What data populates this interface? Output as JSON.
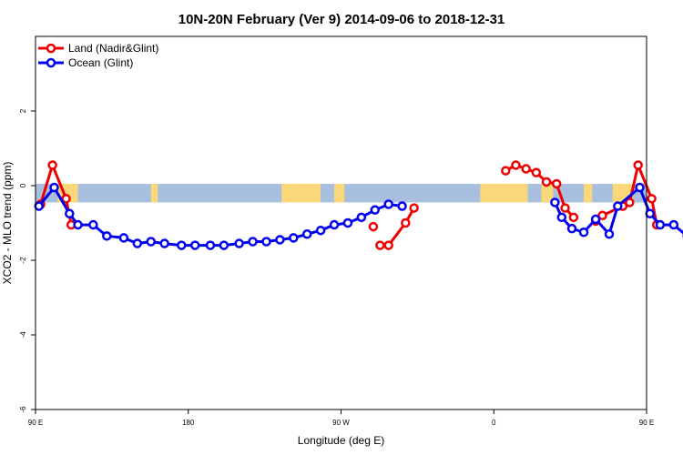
{
  "chart_data": {
    "type": "line",
    "title": "10N-20N February (Ver 9)   2014-09-06 to 2018-12-31",
    "xlabel": "Longitude (deg E)",
    "ylabel": "XCO2 - MLO trend (ppm)",
    "xlim": [
      90,
      450
    ],
    "ylim": [
      -6,
      4
    ],
    "xticks": [
      {
        "value": 90,
        "label": "90 E"
      },
      {
        "value": 180,
        "label": "180"
      },
      {
        "value": 270,
        "label": "90 W"
      },
      {
        "value": 360,
        "label": "0"
      },
      {
        "value": 450,
        "label": "90 E"
      },
      {
        "value": 540,
        "label": "180"
      }
    ],
    "yticks": [
      {
        "value": -6,
        "label": "-6"
      },
      {
        "value": -4,
        "label": "-4"
      },
      {
        "value": -2,
        "label": "-2"
      },
      {
        "value": 0,
        "label": "0"
      },
      {
        "value": 2,
        "label": "2"
      }
    ],
    "legend_position": "top-left",
    "band": {
      "ymin": -0.45,
      "ymax": 0.05,
      "ocean_color": "#a8bfe0",
      "land_color": "#fad87a"
    },
    "land_segments": [
      [
        103,
        115
      ],
      [
        158,
        162
      ],
      [
        235,
        258
      ],
      [
        266,
        272
      ],
      [
        352,
        380
      ],
      [
        388,
        395
      ],
      [
        413,
        418
      ],
      [
        430,
        442
      ],
      [
        486,
        492
      ],
      [
        518,
        528
      ]
    ],
    "series": [
      {
        "name": "Land (Nadir&Glint)",
        "color": "#ee0000",
        "segments": [
          [
            [
              93,
              -0.5
            ],
            [
              100,
              0.55
            ],
            [
              108,
              -0.35
            ],
            [
              111,
              -1.05
            ]
          ],
          [
            [
              289,
              -1.1
            ]
          ],
          [
            [
              293,
              -1.6
            ],
            [
              298,
              -1.6
            ],
            [
              308,
              -1.0
            ],
            [
              313,
              -0.6
            ]
          ],
          [
            [
              367,
              0.4
            ],
            [
              373,
              0.55
            ],
            [
              379,
              0.45
            ],
            [
              385,
              0.35
            ],
            [
              391,
              0.1
            ],
            [
              397,
              0.05
            ],
            [
              402,
              -0.6
            ],
            [
              407,
              -0.85
            ]
          ],
          [
            [
              420,
              -0.95
            ],
            [
              424,
              -0.8
            ],
            [
              436,
              -0.55
            ],
            [
              440,
              -0.45
            ],
            [
              445,
              0.55
            ],
            [
              453,
              -0.35
            ],
            [
              456,
              -1.05
            ]
          ]
        ]
      },
      {
        "name": "Ocean (Glint)",
        "color": "#0000ee",
        "segments": [
          [
            [
              92,
              -0.55
            ],
            [
              101,
              -0.05
            ],
            [
              110,
              -0.75
            ],
            [
              115,
              -1.05
            ],
            [
              124,
              -1.05
            ],
            [
              132,
              -1.35
            ],
            [
              142,
              -1.4
            ],
            [
              150,
              -1.55
            ],
            [
              158,
              -1.5
            ],
            [
              166,
              -1.55
            ],
            [
              176,
              -1.6
            ],
            [
              184,
              -1.6
            ],
            [
              193,
              -1.6
            ],
            [
              201,
              -1.6
            ],
            [
              210,
              -1.55
            ],
            [
              218,
              -1.5
            ],
            [
              226,
              -1.5
            ],
            [
              234,
              -1.45
            ],
            [
              242,
              -1.4
            ],
            [
              250,
              -1.3
            ],
            [
              258,
              -1.2
            ],
            [
              266,
              -1.05
            ],
            [
              274,
              -1.0
            ],
            [
              282,
              -0.85
            ],
            [
              290,
              -0.65
            ],
            [
              298,
              -0.5
            ],
            [
              306,
              -0.55
            ]
          ],
          [
            [
              396,
              -0.45
            ],
            [
              400,
              -0.85
            ],
            [
              406,
              -1.15
            ],
            [
              413,
              -1.25
            ],
            [
              420,
              -0.9
            ],
            [
              428,
              -1.3
            ],
            [
              433,
              -0.55
            ],
            [
              446,
              -0.05
            ],
            [
              452,
              -0.75
            ],
            [
              458,
              -1.05
            ],
            [
              466,
              -1.05
            ],
            [
              474,
              -1.35
            ],
            [
              482,
              -1.4
            ],
            [
              490,
              -1.55
            ],
            [
              498,
              -1.5
            ]
          ]
        ]
      }
    ]
  }
}
